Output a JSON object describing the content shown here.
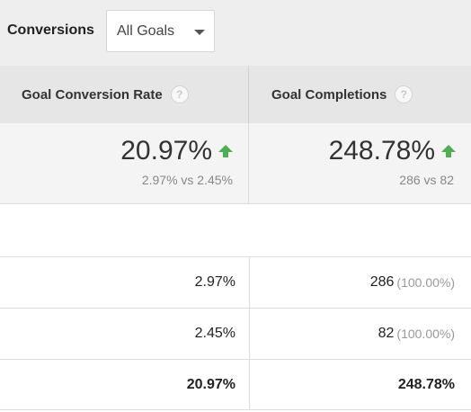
{
  "filter": {
    "label": "Conversions",
    "dropdown_value": "All Goals"
  },
  "metrics": [
    {
      "header": "Goal Conversion Rate",
      "help": "?",
      "value": "20.97%",
      "trend": "up",
      "comparison": "2.97% vs 2.45%"
    },
    {
      "header": "Goal Completions",
      "help": "?",
      "value": "248.78%",
      "trend": "up",
      "comparison": "286 vs 82"
    }
  ],
  "rows": [
    {
      "rate": "2.97%",
      "completions": "286",
      "completions_pct": "(100.00%)"
    },
    {
      "rate": "2.45%",
      "completions": "82",
      "completions_pct": "(100.00%)"
    },
    {
      "rate": "20.97%",
      "completions": "248.78%",
      "completions_pct": ""
    }
  ],
  "colors": {
    "trend_up": "#4caf50",
    "header_bg": "#e6e6e6",
    "summary_bg": "#f4f4f4"
  }
}
